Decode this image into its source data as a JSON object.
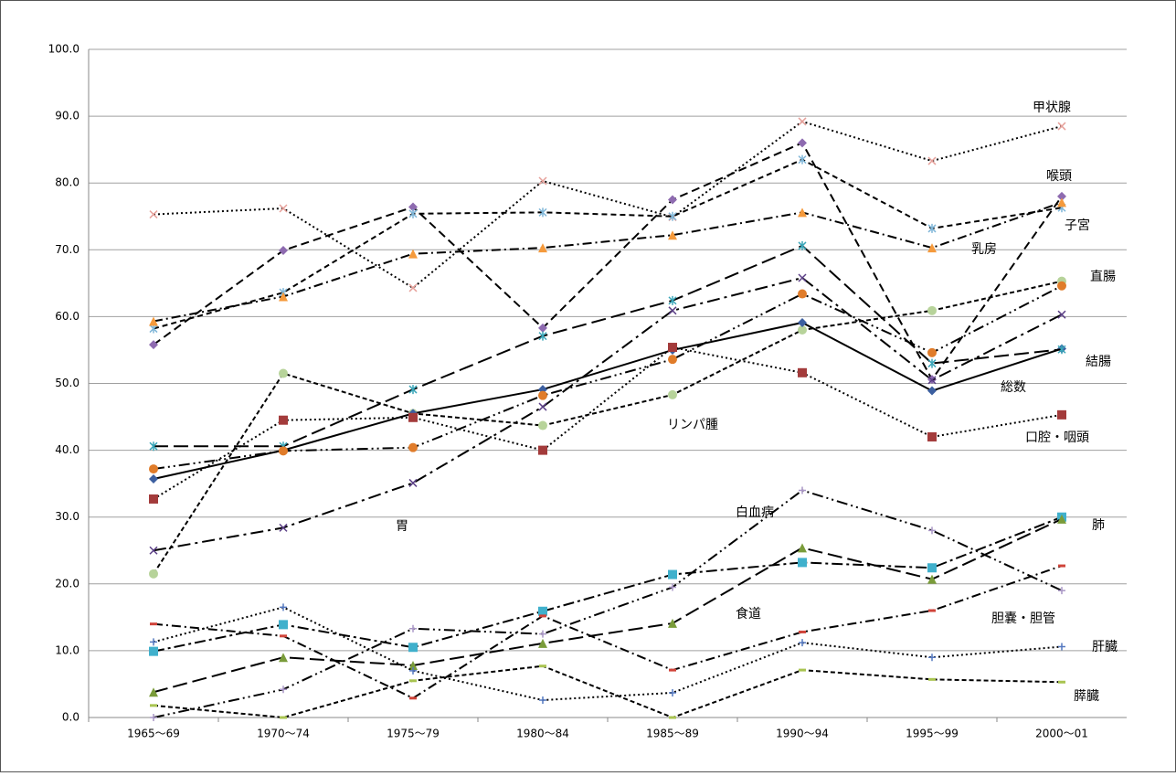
{
  "chart_data": {
    "type": "line",
    "categories": [
      "1965〜69",
      "1970〜74",
      "1975〜79",
      "1980〜84",
      "1985〜89",
      "1990〜94",
      "1995〜99",
      "2000〜01"
    ],
    "ylim": [
      0,
      100
    ],
    "yticks": [
      {
        "value": 0,
        "label": "0.0"
      },
      {
        "value": 10,
        "label": "10.0"
      },
      {
        "value": 20,
        "label": "20.0"
      },
      {
        "value": 30,
        "label": "30.0"
      },
      {
        "value": 40,
        "label": "40.0"
      },
      {
        "value": 50,
        "label": "50.0"
      },
      {
        "value": 60,
        "label": "60.0"
      },
      {
        "value": 70,
        "label": "70.0"
      },
      {
        "value": 80,
        "label": "80.0"
      },
      {
        "value": 90,
        "label": "90.0"
      },
      {
        "value": 100,
        "label": "100.0"
      }
    ],
    "grid": true,
    "series": [
      {
        "name": "甲状腺",
        "color": "#e6a09a",
        "dash": "2,3",
        "marker": "x",
        "values": [
          75.3,
          76.2,
          64.3,
          80.3,
          74.9,
          89.2,
          83.3,
          88.5
        ]
      },
      {
        "name": "喉頭",
        "color": "#8e6bb0",
        "dash": "9,5",
        "marker": "diamond",
        "values": [
          55.8,
          69.9,
          76.4,
          58.3,
          77.5,
          86.0,
          50.6,
          78.0
        ]
      },
      {
        "name": "子宮",
        "color": "#7fb6d8",
        "dash": "6,4",
        "marker": "star",
        "values": [
          58.2,
          63.6,
          75.4,
          75.6,
          75.0,
          83.5,
          73.2,
          76.3
        ]
      },
      {
        "name": "乳房",
        "color": "#f59a3c",
        "dash": "10,4,2,4",
        "marker": "triangle",
        "values": [
          59.3,
          63.0,
          69.4,
          70.3,
          72.2,
          75.6,
          70.3,
          77.1
        ]
      },
      {
        "name": "直腸",
        "color": "#b7d39a",
        "dash": "5,3",
        "marker": "circle",
        "values": [
          21.5,
          51.5,
          45.5,
          43.7,
          48.3,
          58.0,
          60.9,
          65.3
        ]
      },
      {
        "name": "総数",
        "color": "#3c5fa0",
        "dash": "",
        "marker": "diamond",
        "values": [
          35.7,
          40.0,
          45.5,
          49.1,
          55.0,
          59.1,
          48.9,
          55.2
        ]
      },
      {
        "name": "結腸",
        "color": "#3aa6b9",
        "dash": "16,6",
        "marker": "star",
        "values": [
          40.6,
          40.6,
          49.1,
          57.1,
          62.4,
          70.6,
          53.0,
          55.1
        ]
      },
      {
        "name": "口腔・咽頭",
        "color": "#a33b3b",
        "dash": "2,3",
        "marker": "square",
        "values": [
          32.7,
          44.5,
          44.9,
          40.0,
          55.4,
          51.6,
          42.0,
          45.3
        ]
      },
      {
        "name": "胃",
        "color": "#5b3f86",
        "dash": "14,5,3,5",
        "marker": "x",
        "values": [
          25.0,
          28.4,
          35.1,
          46.5,
          60.9,
          65.8,
          50.5,
          60.3
        ]
      },
      {
        "name": "リンパ腫",
        "color": "#e07c2a",
        "dash": "12,4,2,4,2,4",
        "marker": "circle",
        "values": [
          37.2,
          39.9,
          40.4,
          48.2,
          53.6,
          63.4,
          54.6,
          64.6
        ]
      },
      {
        "name": "肺",
        "color": "#40b0cc",
        "dash": "12,4,3,4",
        "marker": "square",
        "values": [
          9.9,
          13.9,
          10.5,
          15.9,
          21.4,
          23.2,
          22.4,
          30.0
        ]
      },
      {
        "name": "白血病",
        "color": "#a996c6",
        "dash": "12,4,2,4,2,4",
        "marker": "plus",
        "values": [
          0.0,
          4.2,
          13.3,
          12.5,
          19.5,
          34.0,
          28.0,
          19.0
        ]
      },
      {
        "name": "食道",
        "color": "#7a9c3a",
        "dash": "16,6",
        "marker": "triangle",
        "values": [
          3.8,
          9.0,
          7.8,
          11.1,
          14.1,
          25.4,
          20.7,
          29.7
        ]
      },
      {
        "name": "胆嚢・胆管",
        "color": "#d0443a",
        "dash": "10,4,2,4",
        "marker": "dash",
        "values": [
          14.0,
          12.2,
          2.9,
          15.2,
          7.1,
          12.8,
          16.0,
          22.7
        ]
      },
      {
        "name": "肝臓",
        "color": "#5478c0",
        "dash": "2,3",
        "marker": "plus",
        "values": [
          11.3,
          16.5,
          7.0,
          2.6,
          3.7,
          11.2,
          9.0,
          10.6
        ]
      },
      {
        "name": "膵臓",
        "color": "#a9c451",
        "dash": "5,3",
        "marker": "dash",
        "values": [
          1.8,
          0.0,
          5.5,
          7.7,
          0.0,
          7.1,
          5.7,
          5.3
        ]
      }
    ]
  }
}
